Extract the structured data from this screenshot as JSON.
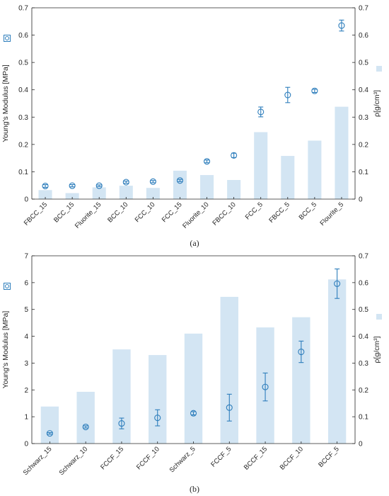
{
  "chart_data": [
    {
      "type": "bar",
      "panel_label": "(a)",
      "categories": [
        "FBCC_15",
        "BCC_15",
        "Fluorite_15",
        "BCC_10",
        "FCC_10",
        "FCC_15",
        "Fluorite_10",
        "FBCC_10",
        "FCC_5",
        "FBCC_5",
        "BCC_5",
        "Flourite_5"
      ],
      "ylabel": "Young's Modulus [MPa]",
      "y2label": "ρ[g/cm³]",
      "ylim": [
        0,
        0.7
      ],
      "y2lim": [
        0,
        0.7
      ],
      "yticks": [
        "0",
        "0.1",
        "0.2",
        "0.3",
        "0.4",
        "0.5",
        "0.6",
        "0.7"
      ],
      "y2ticks": [
        "0",
        "0.1",
        "0.2",
        "0.3",
        "0.4",
        "0.5",
        "0.6",
        "0.7"
      ],
      "series": [
        {
          "name": "Young's Modulus",
          "style": "errorbar",
          "axis": "left",
          "values": [
            0.048,
            0.049,
            0.049,
            0.062,
            0.064,
            0.068,
            0.138,
            0.16,
            0.319,
            0.381,
            0.396,
            0.635
          ],
          "err": [
            0.005,
            0.004,
            0.003,
            0.004,
            0.004,
            0.004,
            0.005,
            0.008,
            0.018,
            0.028,
            0.006,
            0.02
          ]
        },
        {
          "name": "ρ",
          "style": "bar",
          "axis": "right",
          "values": [
            0.033,
            0.022,
            0.043,
            0.049,
            0.041,
            0.104,
            0.088,
            0.07,
            0.245,
            0.158,
            0.214,
            0.338
          ]
        }
      ]
    },
    {
      "type": "bar",
      "panel_label": "(b)",
      "categories": [
        "Schwarz_15",
        "Schwarz_10",
        "FCCF_15",
        "FCCF_10",
        "Schwarz_5",
        "FCCF_5",
        "BCCF_15",
        "BCCF_10",
        "BCCF_5"
      ],
      "ylabel": "Young's Modulus [MPa]",
      "y2label": "ρ[g/cm³]",
      "ylim": [
        0,
        7
      ],
      "y2lim": [
        0,
        0.7
      ],
      "yticks": [
        "0",
        "1",
        "2",
        "3",
        "4",
        "5",
        "6",
        "7"
      ],
      "y2ticks": [
        "0",
        "0.1",
        "0.2",
        "0.3",
        "0.4",
        "0.5",
        "0.6",
        "0.7"
      ],
      "series": [
        {
          "name": "Young's Modulus",
          "style": "errorbar",
          "axis": "left",
          "values": [
            0.38,
            0.62,
            0.75,
            0.96,
            1.13,
            1.34,
            2.11,
            3.42,
            5.96
          ],
          "err": [
            0.03,
            0.04,
            0.2,
            0.3,
            0.06,
            0.5,
            0.52,
            0.4,
            0.55
          ]
        },
        {
          "name": "ρ",
          "style": "bar",
          "axis": "right",
          "values": [
            0.138,
            0.193,
            0.351,
            0.33,
            0.41,
            0.547,
            0.433,
            0.471,
            0.612
          ]
        }
      ]
    }
  ],
  "colors": {
    "marker": "#2e7ebc",
    "bar": "#d3e5f3",
    "axis": "#262626"
  }
}
